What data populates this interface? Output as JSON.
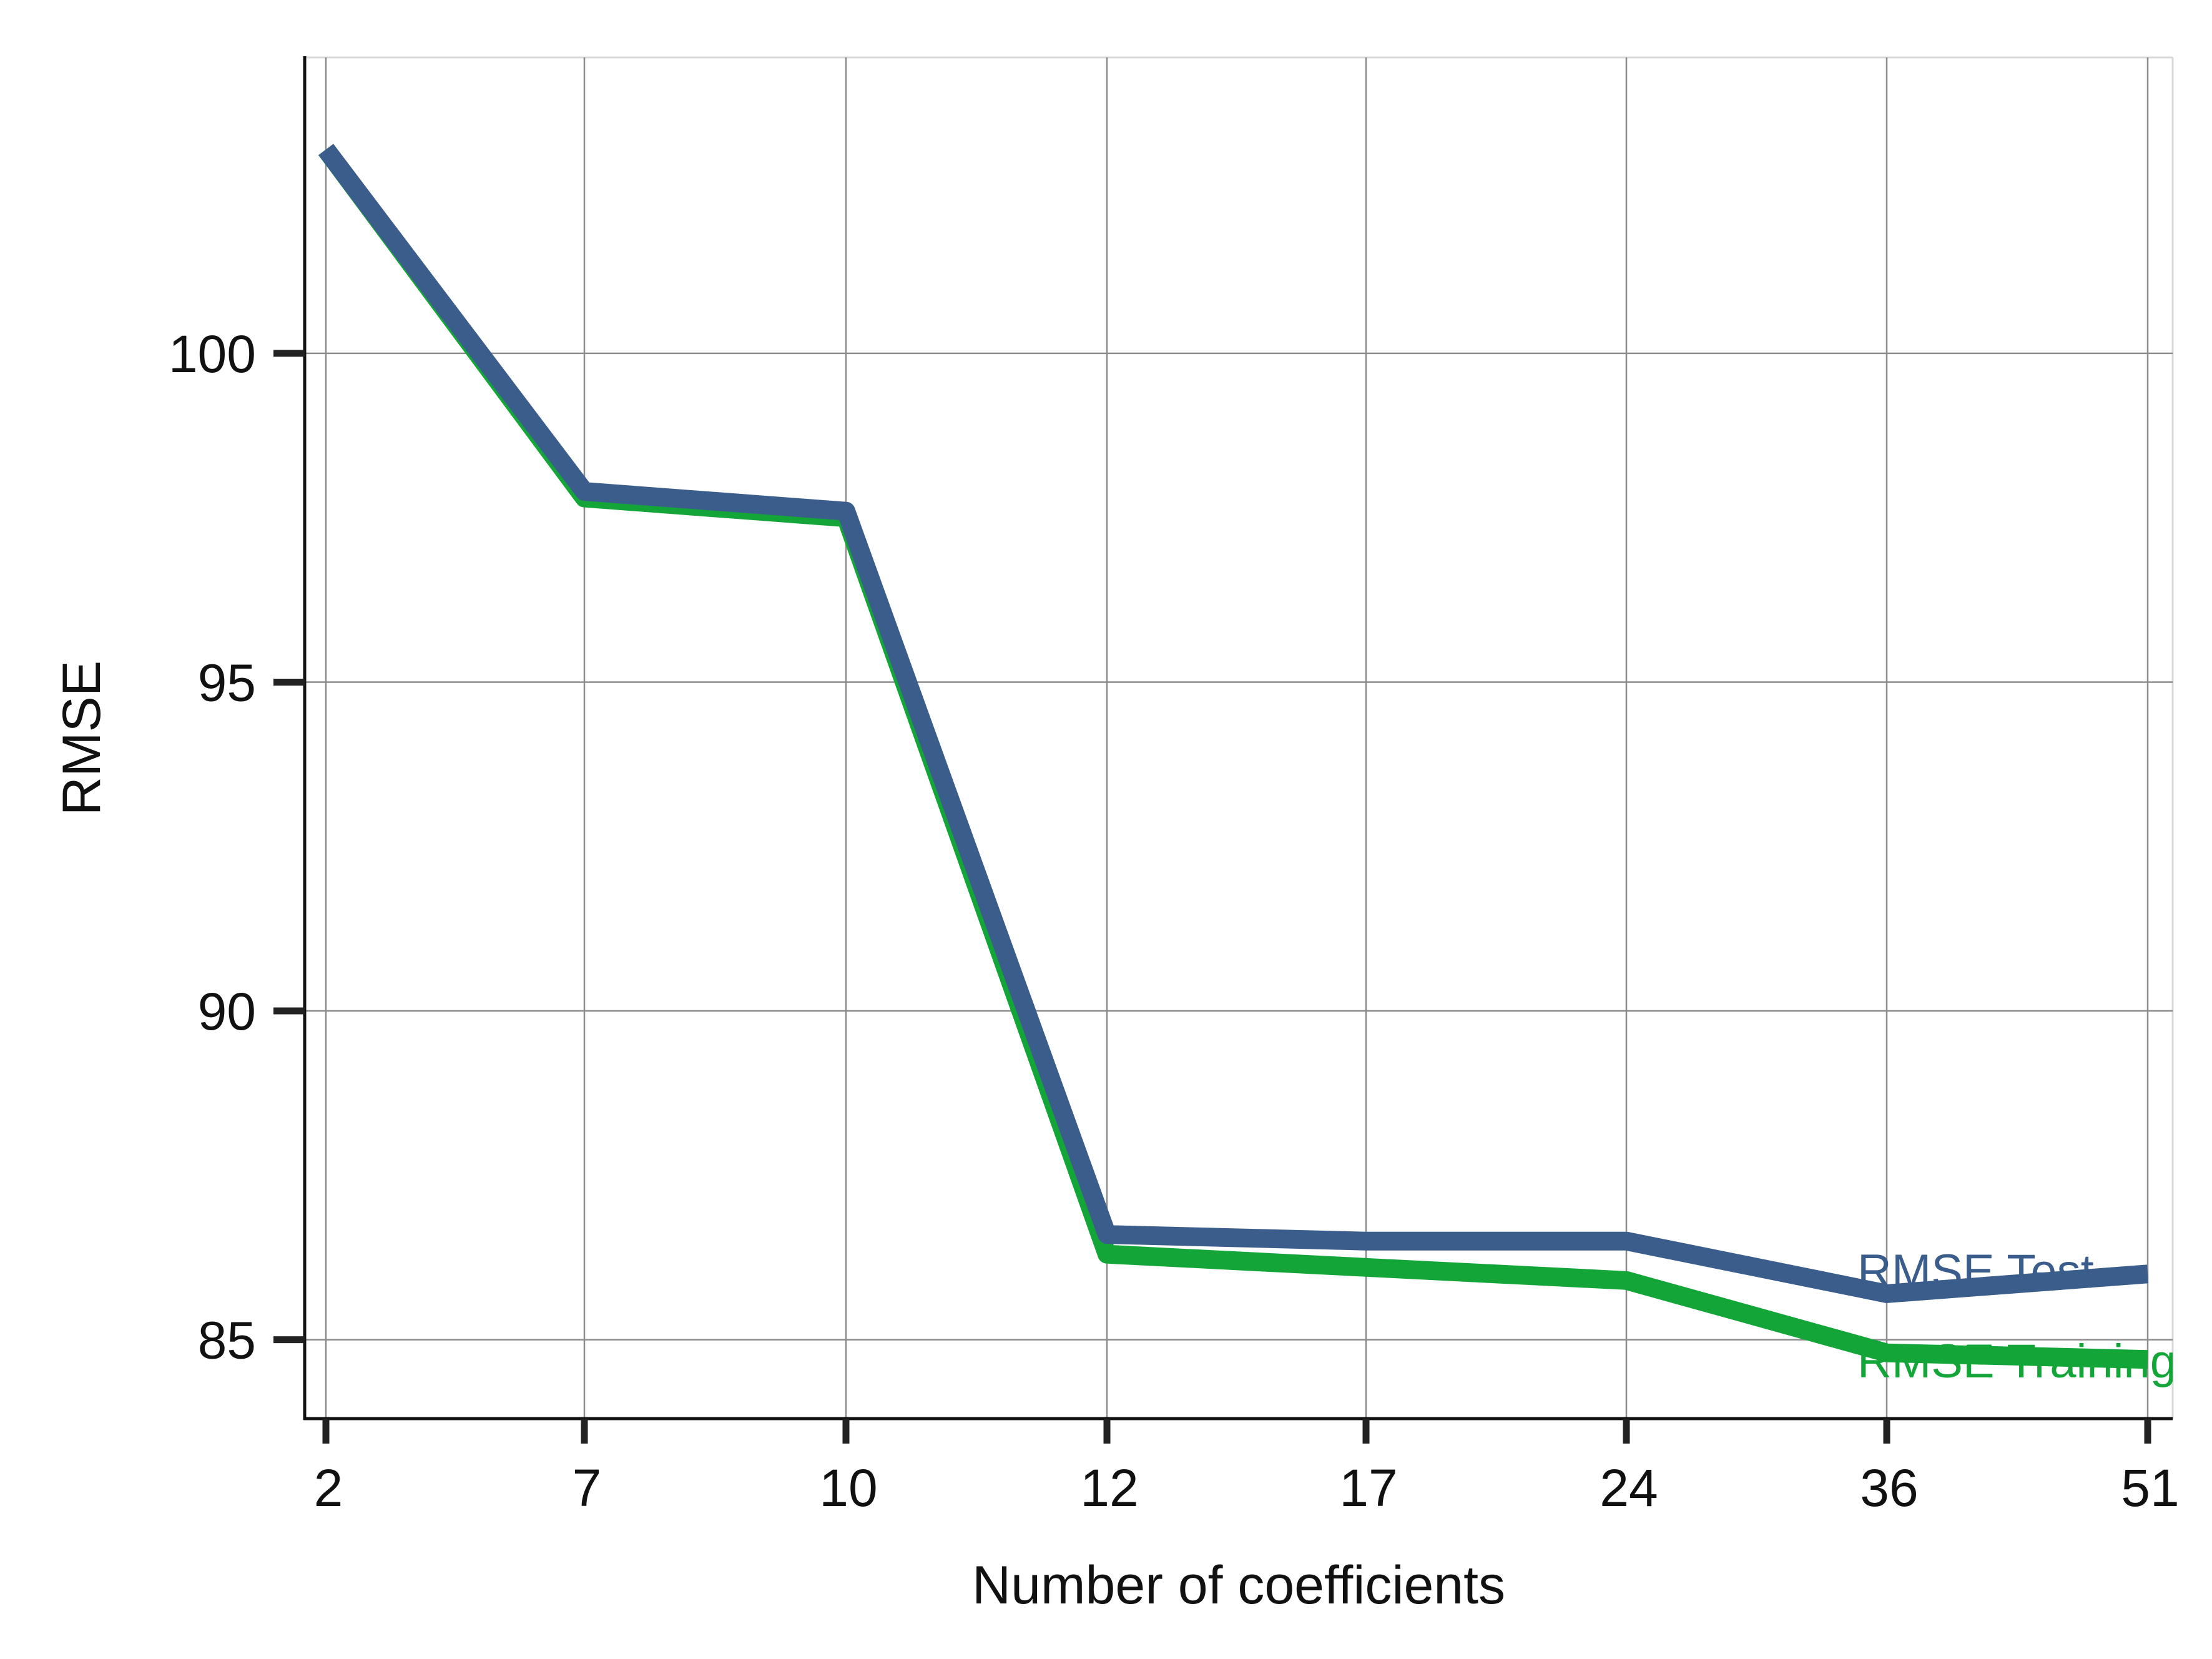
{
  "chart_data": {
    "type": "line",
    "title": "",
    "xlabel": "Number of coefficients",
    "ylabel": "RMSE",
    "categories": [
      "2",
      "7",
      "10",
      "12",
      "17",
      "24",
      "36",
      "51"
    ],
    "x_scale": "categorical",
    "ylim": [
      83.8,
      104.5
    ],
    "yticks": [
      85,
      90,
      95,
      100
    ],
    "grid": true,
    "legend": "none (series labels placed at right end of lines)",
    "series": [
      {
        "name": "RMSE Training",
        "color": "#13a538",
        "values": [
          103.1,
          97.8,
          97.5,
          86.3,
          86.1,
          85.9,
          84.8,
          84.7
        ]
      },
      {
        "name": "RMSE Test",
        "color": "#3b5d8c",
        "values": [
          103.1,
          97.9,
          97.6,
          86.6,
          86.5,
          86.5,
          85.7,
          86.0
        ]
      }
    ]
  }
}
